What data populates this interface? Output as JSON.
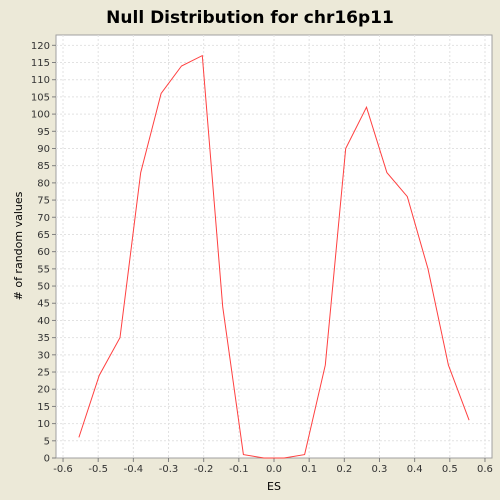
{
  "chart_data": {
    "type": "line",
    "title": "Null Distribution for chr16p11",
    "xlabel": "ES",
    "ylabel": "# of random values",
    "xlim": [
      -0.62,
      0.62
    ],
    "ylim": [
      0,
      123
    ],
    "x_ticks": [
      -0.6,
      -0.5,
      -0.4,
      -0.3,
      -0.2,
      -0.1,
      0.0,
      0.1,
      0.2,
      0.3,
      0.4,
      0.5,
      0.6
    ],
    "x_tick_labels": [
      "-0.6",
      "-0.5",
      "-0.4",
      "-0.3",
      "-0.2",
      "-0.1",
      "0.0",
      "0.1",
      "0.2",
      "0.3",
      "0.4",
      "0.5",
      "0.6"
    ],
    "y_ticks": [
      0,
      5,
      10,
      15,
      20,
      25,
      30,
      35,
      40,
      45,
      50,
      55,
      60,
      65,
      70,
      75,
      80,
      85,
      90,
      95,
      100,
      105,
      110,
      115,
      120
    ],
    "grid": true,
    "series": [
      {
        "color": "#FF4040",
        "x": [
          -0.555,
          -0.497,
          -0.438,
          -0.379,
          -0.321,
          -0.263,
          -0.204,
          -0.146,
          -0.087,
          -0.029,
          0.029,
          0.087,
          0.146,
          0.204,
          0.263,
          0.321,
          0.379,
          0.438,
          0.496,
          0.555
        ],
        "y": [
          6,
          24,
          35,
          83,
          106,
          114,
          117,
          44,
          1,
          0,
          0,
          1,
          27,
          90,
          102,
          83,
          76,
          55,
          27,
          11
        ]
      }
    ]
  },
  "colors": {
    "background": "#ECE9D8",
    "plot_background": "#FFFFFF",
    "line": "#FF4040",
    "grid": "#E2E2E2"
  }
}
